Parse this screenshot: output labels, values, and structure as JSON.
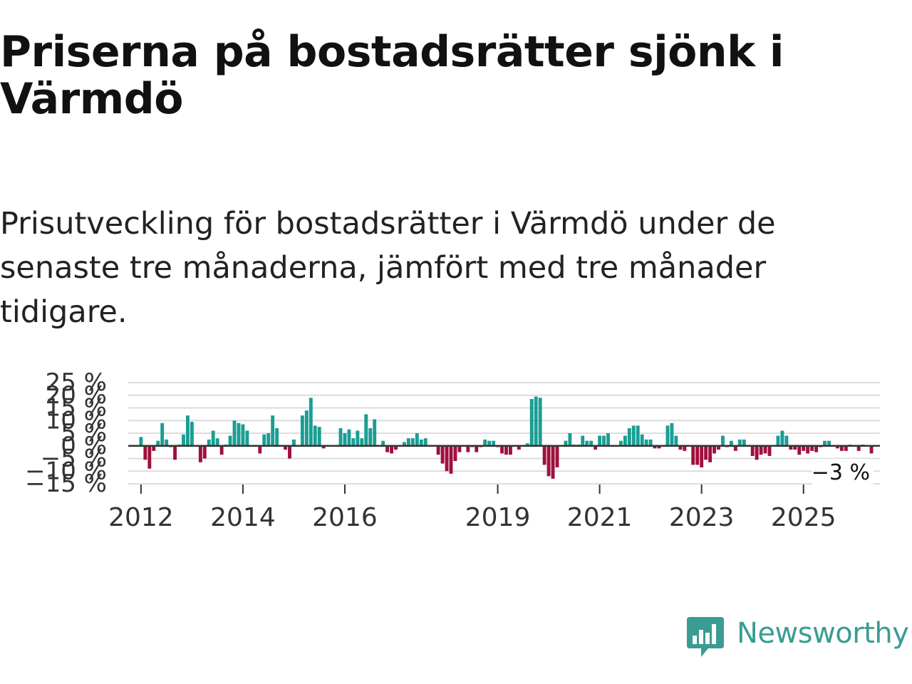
{
  "title": "Priserna på bostadsrätter sjönk i Värmdö",
  "subtitle": "Prisutveckling för bostadsrätter i Värmdö under de senaste tre månaderna, jämfört med tre månader tidigare.",
  "brand": {
    "name": "Newsworthy",
    "color": "#3a9c93",
    "icon": "newsworthy-bar-chart-icon"
  },
  "colors": {
    "positive": "#1a9e94",
    "negative": "#a0103d",
    "grid": "#dcdcdc",
    "zero": "#333333"
  },
  "chart_data": {
    "type": "bar",
    "title": "Priserna på bostadsrätter sjönk i Värmdö",
    "xlabel": "",
    "ylabel": "",
    "ylim": [
      -15,
      25
    ],
    "yticks": [
      -15,
      -10,
      -5,
      0,
      5,
      10,
      15,
      20,
      25
    ],
    "ytick_labels": [
      "−15 %",
      "−10 %",
      "−5 %",
      "0 %",
      "5 %",
      "10 %",
      "15 %",
      "20 %",
      "25 %"
    ],
    "xlim": [
      2011.75,
      2026.5
    ],
    "xtick_labels": [
      {
        "x": 2012.0,
        "label": "2012"
      },
      {
        "x": 2014.0,
        "label": "2014"
      },
      {
        "x": 2016.0,
        "label": "2016"
      },
      {
        "x": 2019.0,
        "label": "2019"
      },
      {
        "x": 2021.0,
        "label": "2021"
      },
      {
        "x": 2023.0,
        "label": "2023"
      },
      {
        "x": 2025.0,
        "label": "2025"
      }
    ],
    "start": 2012.0,
    "step_months": 1,
    "values": [
      3.5,
      -5.5,
      -9,
      -2,
      2,
      9,
      2.5,
      -0.5,
      -5.5,
      0.5,
      4.5,
      12,
      9.5,
      0,
      -6.5,
      -5,
      2.5,
      6,
      3,
      -3.5,
      0.5,
      4,
      10,
      9,
      8.5,
      6,
      0,
      0,
      -3,
      4.5,
      5,
      12,
      7,
      0,
      -1.5,
      -5,
      2.5,
      0,
      12,
      14,
      19,
      8,
      7.5,
      -1,
      0,
      0,
      0,
      7,
      5,
      6.5,
      3,
      6,
      3,
      12.5,
      7,
      10.5,
      0,
      2,
      -2.5,
      -3,
      -1.5,
      0,
      1.5,
      3,
      3,
      5,
      2.5,
      3,
      0,
      0,
      -3.5,
      -7,
      -10,
      -11,
      -6,
      -2.5,
      0,
      -2.5,
      -0.5,
      -2.5,
      -0.5,
      2.5,
      2,
      2,
      -0.5,
      -3,
      -3.5,
      -3.5,
      0,
      -1.5,
      0,
      1,
      18.5,
      19.5,
      19,
      -7.5,
      -12,
      -13,
      -8.5,
      0,
      2,
      5,
      0.5,
      0.5,
      4,
      2,
      2,
      -1.5,
      4,
      4,
      5,
      0,
      0,
      2,
      4,
      7,
      8,
      8,
      4.5,
      2.5,
      2.5,
      -1,
      -1,
      0,
      8,
      9,
      4,
      -1.5,
      -2,
      0,
      -7.5,
      -7.5,
      -8.5,
      -5.5,
      -6.5,
      -3,
      -1.5,
      4,
      -0.5,
      2,
      -2,
      2.5,
      2.5,
      0,
      -4,
      -5.5,
      -3.5,
      -3,
      -4,
      0,
      4,
      6,
      4,
      -1.5,
      -1.5,
      -3.5,
      -2,
      -3,
      -2,
      -2.5,
      -0.5,
      2,
      2,
      0,
      -1,
      -2,
      -2,
      0.5,
      0,
      -2,
      0.5,
      0,
      -3
    ],
    "annotations": [
      {
        "label": "−3 %"
      }
    ]
  }
}
